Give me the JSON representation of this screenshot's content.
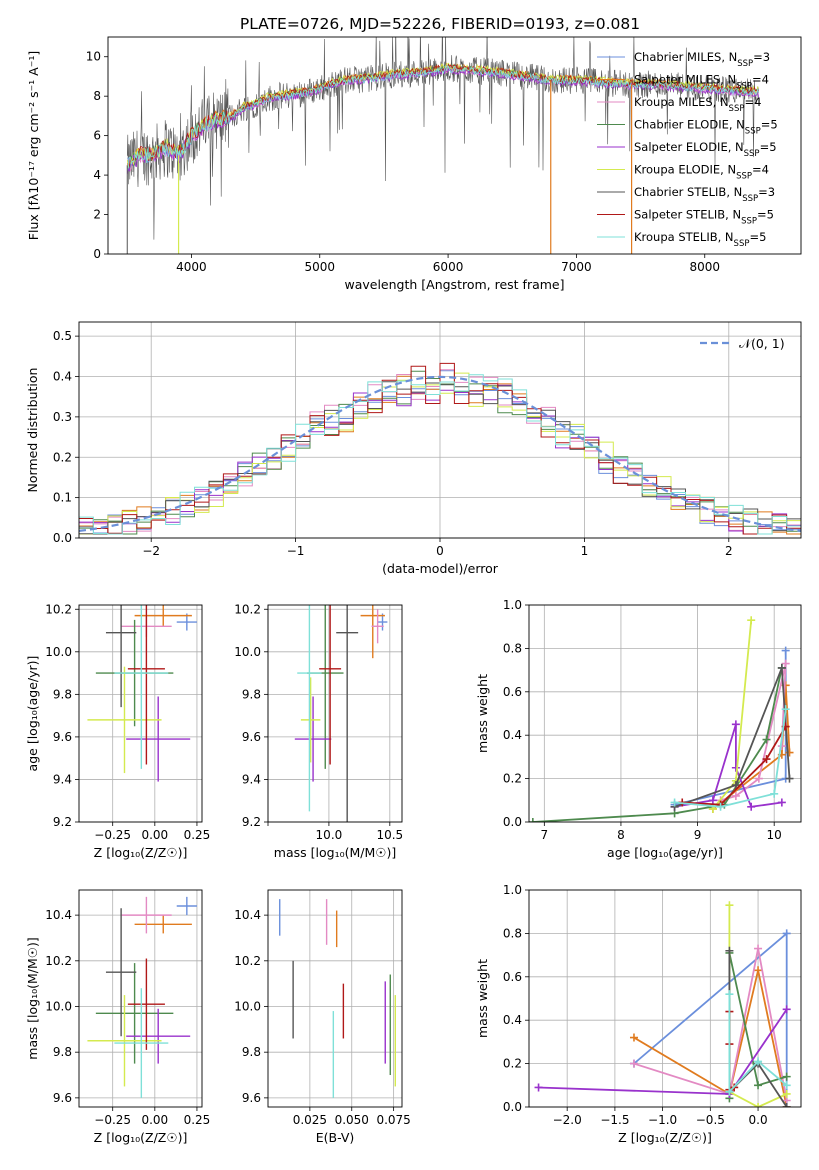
{
  "figure": {
    "title": "PLATE=0726, MJD=52226, FIBERID=0193, z=0.081"
  },
  "models": [
    {
      "name": "Chabrier MILES",
      "nssp": "3",
      "color": "#6b8fdc"
    },
    {
      "name": "Salpeter MILES",
      "nssp": "4",
      "color": "#e07b1f"
    },
    {
      "name": "Kroupa MILES",
      "nssp": "4",
      "color": "#e38ac3"
    },
    {
      "name": "Chabrier ELODIE",
      "nssp": "5",
      "color": "#4e8a4e"
    },
    {
      "name": "Salpeter ELODIE",
      "nssp": "5",
      "color": "#9932cc"
    },
    {
      "name": "Kroupa ELODIE",
      "nssp": "4",
      "color": "#d4ea4f"
    },
    {
      "name": "Chabrier STELIB",
      "nssp": "3",
      "color": "#555555"
    },
    {
      "name": "Salpeter STELIB",
      "nssp": "5",
      "color": "#b01818"
    },
    {
      "name": "Kroupa STELIB",
      "nssp": "5",
      "color": "#7fe0d8"
    }
  ],
  "chart_data": [
    {
      "id": "spectrum",
      "type": "line",
      "xlabel": "wavelength [Angstrom, rest frame]",
      "ylabel": "Flux [fλ10⁻¹⁷ erg cm⁻² s⁻¹ A⁻¹]",
      "xlim": [
        3350,
        8750
      ],
      "ylim": [
        0,
        11
      ],
      "xticks": [
        4000,
        5000,
        6000,
        7000,
        8000
      ],
      "yticks": [
        0,
        2,
        4,
        6,
        8,
        10
      ],
      "legend": "upper-right",
      "grid": false,
      "continuum": {
        "x": [
          3500,
          3600,
          3700,
          3800,
          3900,
          4000,
          4100,
          4200,
          4300,
          4400,
          4500,
          4600,
          4700,
          4800,
          4900,
          5000,
          5200,
          5400,
          5600,
          5800,
          6000,
          6200,
          6400,
          6600,
          6800,
          7000,
          7200,
          7400,
          7600,
          7800,
          8000,
          8200,
          8400
        ],
        "y": [
          4.5,
          5.0,
          5.0,
          5.4,
          5.0,
          6.0,
          6.5,
          6.8,
          6.9,
          7.4,
          7.6,
          7.9,
          8.0,
          8.1,
          8.2,
          8.4,
          8.8,
          8.9,
          9.1,
          9.2,
          9.4,
          9.3,
          9.2,
          9.0,
          8.8,
          8.8,
          8.7,
          8.6,
          8.6,
          8.5,
          8.4,
          8.3,
          8.2
        ]
      },
      "drops": [
        {
          "series": "Kroupa ELODIE",
          "x": 3900
        },
        {
          "series": "Salpeter MILES",
          "x": 6800
        },
        {
          "series": "Salpeter MILES",
          "x": 7430
        }
      ]
    },
    {
      "id": "residuals",
      "type": "histogram",
      "xlabel": "(data-model)/error",
      "ylabel": "Normed distribution",
      "xlim": [
        -2.5,
        2.5
      ],
      "ylim": [
        0,
        0.535
      ],
      "xticks": [
        -2,
        -1,
        0,
        1,
        2
      ],
      "yticks": [
        0.0,
        0.1,
        0.2,
        0.3,
        0.4,
        0.5
      ],
      "grid": true,
      "legend": "upper-right",
      "normal_label": "𝒩(0, 1)",
      "bin_width": 0.1
    },
    {
      "id": "age-vs-z",
      "type": "errorbar",
      "xlabel": "Z [log₁₀(Z/Z☉)]",
      "ylabel": "age  [log₁₀(age/yr)]",
      "xlim": [
        -0.45,
        0.28
      ],
      "ylim": [
        9.2,
        10.22
      ],
      "xticks": [
        -0.25,
        0.0,
        0.25
      ],
      "xtick_labels": [
        "−0.25",
        "0.00",
        "0.25"
      ],
      "yticks": [
        9.2,
        9.4,
        9.6,
        9.8,
        10.0,
        10.2
      ],
      "grid": true,
      "points": [
        {
          "x": 0.19,
          "y": 10.14,
          "xerr": 0.06,
          "yerr": 0.04
        },
        {
          "x": 0.05,
          "y": 10.17,
          "xerr": 0.17,
          "yerr": 0.05
        },
        {
          "x": -0.05,
          "y": 10.12,
          "xerr": 0.15,
          "yerr": 0.05
        },
        {
          "x": -0.12,
          "y": 9.9,
          "xerr": 0.23,
          "yerr": 0.25
        },
        {
          "x": 0.02,
          "y": 9.59,
          "xerr": 0.19,
          "yerr": 0.2
        },
        {
          "x": -0.18,
          "y": 9.68,
          "xerr": 0.22,
          "yerr": 0.25
        },
        {
          "x": -0.2,
          "y": 10.09,
          "xerr": 0.09,
          "yerr": 0.35
        },
        {
          "x": -0.05,
          "y": 9.92,
          "xerr": 0.11,
          "yerr": 0.45
        },
        {
          "x": -0.08,
          "y": 9.9,
          "xerr": 0.16,
          "yerr": 0.45
        }
      ]
    },
    {
      "id": "age-vs-mass",
      "type": "errorbar",
      "xlabel": "mass [log₁₀(M/M☉)]",
      "ylabel": "",
      "xlim": [
        9.5,
        10.6
      ],
      "ylim": [
        9.2,
        10.22
      ],
      "xticks": [
        9.5,
        10.0,
        10.5
      ],
      "xtick_labels": [
        "",
        "10.0",
        "10.5"
      ],
      "yticks": [
        9.2,
        9.4,
        9.6,
        9.8,
        10.0,
        10.2
      ],
      "grid": true,
      "points": [
        {
          "x": 10.44,
          "y": 10.14,
          "xerr": 0.04,
          "yerr": 0.04
        },
        {
          "x": 10.36,
          "y": 10.17,
          "xerr": 0.1,
          "yerr": 0.2
        },
        {
          "x": 10.4,
          "y": 10.12,
          "xerr": 0.05,
          "yerr": 0.08
        },
        {
          "x": 9.97,
          "y": 9.9,
          "xerr": 0.15,
          "yerr": 0.45
        },
        {
          "x": 9.87,
          "y": 9.59,
          "xerr": 0.15,
          "yerr": 0.2
        },
        {
          "x": 9.85,
          "y": 9.68,
          "xerr": 0.08,
          "yerr": 0.2
        },
        {
          "x": 10.15,
          "y": 10.09,
          "xerr": 0.09,
          "yerr": 0.95
        },
        {
          "x": 10.01,
          "y": 9.92,
          "xerr": 0.09,
          "yerr": 0.45
        },
        {
          "x": 9.84,
          "y": 9.9,
          "xerr": 0.1,
          "yerr": 0.65
        }
      ]
    },
    {
      "id": "weight-vs-age",
      "type": "line",
      "xlabel": "age  [log₁₀(age/yr)]",
      "ylabel": "mass weight",
      "xlim": [
        6.8,
        10.35
      ],
      "ylim": [
        0.0,
        1.0
      ],
      "xticks": [
        7,
        8,
        9,
        10
      ],
      "yticks": [
        0.0,
        0.2,
        0.4,
        0.6,
        0.8,
        1.0
      ],
      "grid": true,
      "series": [
        {
          "name": "Chabrier MILES",
          "x": [
            8.7,
            10.15,
            10.15
          ],
          "y": [
            0.08,
            0.2,
            0.79
          ]
        },
        {
          "name": "Salpeter MILES",
          "x": [
            9.2,
            10.1,
            10.15,
            10.2
          ],
          "y": [
            0.06,
            0.31,
            0.63,
            0.32
          ]
        },
        {
          "name": "Kroupa MILES",
          "x": [
            9.3,
            9.5,
            9.8,
            10.15,
            10.1
          ],
          "y": [
            0.1,
            0.12,
            0.2,
            0.73,
            0.35
          ]
        },
        {
          "name": "Chabrier ELODIE",
          "x": [
            6.85,
            8.7,
            9.35,
            9.9,
            10.1
          ],
          "y": [
            0.0,
            0.04,
            0.08,
            0.38,
            0.71
          ]
        },
        {
          "name": "Salpeter ELODIE",
          "x": [
            8.7,
            9.2,
            9.5,
            9.5,
            9.7,
            10.1
          ],
          "y": [
            0.07,
            0.1,
            0.45,
            0.25,
            0.07,
            0.09
          ]
        },
        {
          "name": "Kroupa ELODIE",
          "x": [
            9.2,
            9.5,
            9.7
          ],
          "y": [
            0.06,
            0.19,
            0.93
          ]
        },
        {
          "name": "Chabrier STELIB",
          "x": [
            8.7,
            9.5,
            10.1,
            10.2
          ],
          "y": [
            0.07,
            0.17,
            0.71,
            0.2
          ]
        },
        {
          "name": "Salpeter STELIB",
          "x": [
            8.8,
            9.3,
            9.9,
            10.15
          ],
          "y": [
            0.09,
            0.08,
            0.29,
            0.44
          ]
        },
        {
          "name": "Kroupa STELIB",
          "x": [
            8.7,
            9.3,
            10.0,
            10.15
          ],
          "y": [
            0.09,
            0.07,
            0.13,
            0.52
          ]
        }
      ]
    },
    {
      "id": "mass-vs-z",
      "type": "errorbar",
      "xlabel": "Z [log₁₀(Z/Z☉)]",
      "ylabel": "mass [log₁₀(M/M☉)]",
      "xlim": [
        -0.45,
        0.28
      ],
      "ylim": [
        9.56,
        10.51
      ],
      "xticks": [
        -0.25,
        0.0,
        0.25
      ],
      "xtick_labels": [
        "−0.25",
        "0.00",
        "0.25"
      ],
      "yticks": [
        9.6,
        9.8,
        10.0,
        10.2,
        10.4
      ],
      "grid": true,
      "points": [
        {
          "x": 0.19,
          "y": 10.44,
          "xerr": 0.06,
          "yerr": 0.04
        },
        {
          "x": 0.05,
          "y": 10.36,
          "xerr": 0.17,
          "yerr": 0.04
        },
        {
          "x": -0.05,
          "y": 10.4,
          "xerr": 0.15,
          "yerr": 0.08
        },
        {
          "x": -0.12,
          "y": 9.97,
          "xerr": 0.23,
          "yerr": 0.22
        },
        {
          "x": 0.02,
          "y": 9.87,
          "xerr": 0.19,
          "yerr": 0.12
        },
        {
          "x": -0.18,
          "y": 9.85,
          "xerr": 0.22,
          "yerr": 0.2
        },
        {
          "x": -0.2,
          "y": 10.15,
          "xerr": 0.09,
          "yerr": 0.28
        },
        {
          "x": -0.05,
          "y": 10.01,
          "xerr": 0.11,
          "yerr": 0.2
        },
        {
          "x": -0.08,
          "y": 9.84,
          "xerr": 0.16,
          "yerr": 0.24
        }
      ]
    },
    {
      "id": "mass-vs-ebv",
      "type": "errorbar",
      "xlabel": "E(B-V)",
      "ylabel": "",
      "xlim": [
        0.0,
        0.08
      ],
      "ylim": [
        9.56,
        10.51
      ],
      "xticks": [
        0.025,
        0.05,
        0.075
      ],
      "xtick_labels": [
        "0.025",
        "0.050",
        "0.075"
      ],
      "yticks": [
        9.6,
        9.8,
        10.0,
        10.2,
        10.4
      ],
      "grid": true,
      "points": [
        {
          "x": 0.007,
          "y": 10.39,
          "xerr": 0,
          "yerr": 0.08
        },
        {
          "x": 0.041,
          "y": 10.34,
          "xerr": 0,
          "yerr": 0.08
        },
        {
          "x": 0.035,
          "y": 10.37,
          "xerr": 0,
          "yerr": 0.1
        },
        {
          "x": 0.073,
          "y": 9.92,
          "xerr": 0,
          "yerr": 0.22
        },
        {
          "x": 0.07,
          "y": 9.93,
          "xerr": 0,
          "yerr": 0.18
        },
        {
          "x": 0.076,
          "y": 9.85,
          "xerr": 0,
          "yerr": 0.2
        },
        {
          "x": 0.015,
          "y": 10.03,
          "xerr": 0,
          "yerr": 0.17
        },
        {
          "x": 0.045,
          "y": 9.98,
          "xerr": 0,
          "yerr": 0.12
        },
        {
          "x": 0.039,
          "y": 9.79,
          "xerr": 0,
          "yerr": 0.19
        }
      ]
    },
    {
      "id": "weight-vs-z",
      "type": "line",
      "xlabel": "Z [log₁₀(Z/Z☉)]",
      "ylabel": "mass weight",
      "xlim": [
        -2.4,
        0.45
      ],
      "ylim": [
        0.0,
        1.0
      ],
      "xticks": [
        -2.0,
        -1.5,
        -1.0,
        -0.5,
        0.0
      ],
      "xtick_labels": [
        "−2.0",
        "−1.5",
        "−1.0",
        "−0.5",
        "0.0"
      ],
      "yticks": [
        0.0,
        0.2,
        0.4,
        0.6,
        0.8,
        1.0
      ],
      "grid": true,
      "series": [
        {
          "name": "Chabrier MILES",
          "x": [
            -1.3,
            0.3,
            0.3
          ],
          "y": [
            0.2,
            0.8,
            0.0
          ]
        },
        {
          "name": "Salpeter MILES",
          "x": [
            -1.3,
            -0.3,
            0.0,
            0.3
          ],
          "y": [
            0.32,
            0.06,
            0.63,
            0.0
          ]
        },
        {
          "name": "Kroupa MILES",
          "x": [
            -1.3,
            -0.3,
            0.0,
            0.3
          ],
          "y": [
            0.2,
            0.06,
            0.73,
            0.03
          ]
        },
        {
          "name": "Chabrier ELODIE",
          "x": [
            -0.3,
            -0.3,
            0.0,
            0.3
          ],
          "y": [
            0.04,
            0.71,
            0.1,
            0.14
          ]
        },
        {
          "name": "Salpeter ELODIE",
          "x": [
            -2.3,
            -0.3,
            0.3
          ],
          "y": [
            0.09,
            0.06,
            0.45
          ]
        },
        {
          "name": "Kroupa ELODIE",
          "x": [
            -0.3,
            -0.3,
            0.0,
            0.3
          ],
          "y": [
            0.93,
            0.07,
            0.0,
            0.06
          ]
        },
        {
          "name": "Chabrier STELIB",
          "x": [
            -0.3,
            -0.3,
            0.0,
            0.3
          ],
          "y": [
            0.72,
            0.07,
            0.2,
            0.0
          ]
        },
        {
          "name": "Salpeter STELIB",
          "x": [
            -0.3,
            -0.3,
            -0.3,
            -0.25
          ],
          "y": [
            0.44,
            0.29,
            0.08,
            0.09
          ]
        },
        {
          "name": "Kroupa STELIB",
          "x": [
            -0.3,
            -0.3,
            0.0,
            0.3
          ],
          "y": [
            0.52,
            0.07,
            0.21,
            0.1
          ]
        }
      ]
    }
  ]
}
